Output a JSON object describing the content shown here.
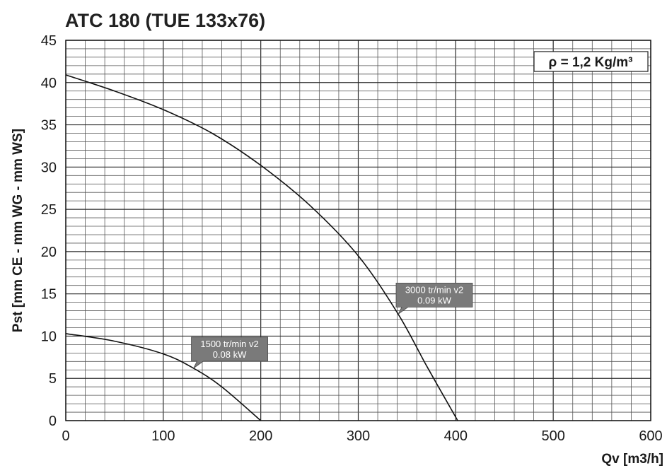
{
  "chart_data": {
    "type": "line",
    "title": "ATC 180 (TUE 133x76)",
    "xlabel": "Qv [m3/h]",
    "ylabel": "Pst [mm CE - mm WG - mm WS]",
    "xlim": [
      0,
      600
    ],
    "ylim": [
      0,
      45
    ],
    "x_ticks": [
      "0",
      "100",
      "200",
      "300",
      "400",
      "500",
      "600"
    ],
    "y_ticks": [
      "0",
      "5",
      "10",
      "15",
      "20",
      "25",
      "30",
      "35",
      "40",
      "45"
    ],
    "grid": true,
    "density_label": "ρ = 1,2 Kg/m³",
    "series": [
      {
        "name": "3000 tr/min v2",
        "power": "0.09 kW",
        "label_at": [
          341,
          12.6
        ],
        "points": [
          [
            0,
            40.9
          ],
          [
            50,
            39.0
          ],
          [
            100,
            36.8
          ],
          [
            150,
            34.0
          ],
          [
            200,
            30.2
          ],
          [
            250,
            25.5
          ],
          [
            300,
            19.5
          ],
          [
            341,
            12.6
          ],
          [
            370,
            6.5
          ],
          [
            402,
            0
          ]
        ]
      },
      {
        "name": "1500 tr/min v2",
        "power": "0.08 kW",
        "label_at": [
          131,
          6.2
        ],
        "points": [
          [
            0,
            10.3
          ],
          [
            50,
            9.4
          ],
          [
            100,
            7.9
          ],
          [
            131,
            6.2
          ],
          [
            160,
            4.0
          ],
          [
            200,
            0
          ]
        ]
      }
    ]
  }
}
